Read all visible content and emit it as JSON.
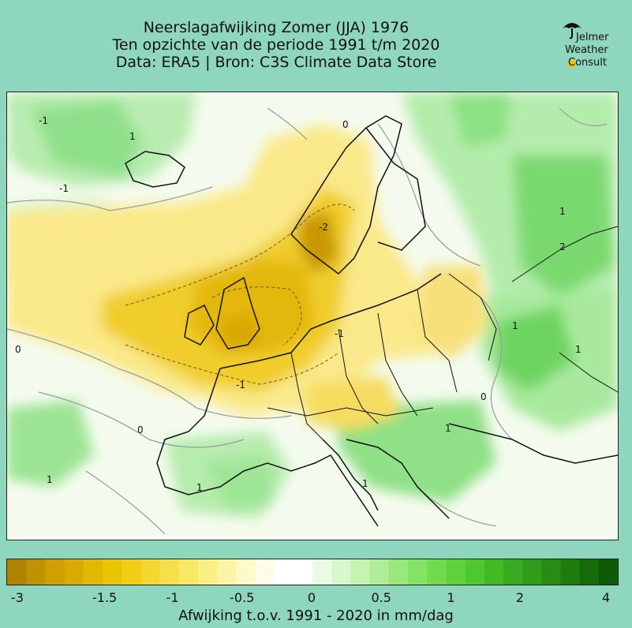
{
  "header": {
    "title": "Neerslagafwijking Zomer (JJA) 1976",
    "subtitle": "Ten opzichte van de periode 1991 t/m 2020",
    "source": "Data: ERA5 | Bron: C3S Climate Data Store"
  },
  "logo": {
    "line1": "Jelmer",
    "line2": "Weather",
    "line3": "Consult",
    "icon": "umbrella-icon",
    "accent": "#f2c200"
  },
  "map": {
    "contour_labels": [
      "-1",
      "-1",
      "1",
      "1",
      "1",
      "1",
      "0",
      "0",
      "0",
      "0",
      "-1",
      "-1",
      "1",
      "1",
      "1",
      "1",
      "2",
      "-2"
    ]
  },
  "colorbar": {
    "label": "Afwijking t.o.v. 1991 - 2020 in mm/dag",
    "ticks": [
      {
        "label": "-3",
        "value": -3
      },
      {
        "label": "-1.5",
        "value": -1.5
      },
      {
        "label": "-1",
        "value": -1
      },
      {
        "label": "-0.5",
        "value": -0.5
      },
      {
        "label": "0",
        "value": 0
      },
      {
        "label": "0.5",
        "value": 0.5
      },
      {
        "label": "1",
        "value": 1
      },
      {
        "label": "2",
        "value": 2
      },
      {
        "label": "4",
        "value": 4
      }
    ],
    "colors": [
      "#b08400",
      "#bf9200",
      "#cfa000",
      "#d9ab00",
      "#e3b800",
      "#e9c400",
      "#efce14",
      "#f3d830",
      "#f6e04a",
      "#f8e866",
      "#faef85",
      "#fcf5a6",
      "#fdf9c8",
      "#fefce6",
      "#ffffff",
      "#ffffff",
      "#eafbe4",
      "#d8f7cc",
      "#c4f3b2",
      "#aeee96",
      "#98e87c",
      "#84e264",
      "#70db4e",
      "#5ed33c",
      "#4ec82e",
      "#42ba26",
      "#38ab20",
      "#2f9c1a",
      "#268c14",
      "#1d7c0e",
      "#156b09",
      "#0f5a05"
    ]
  }
}
